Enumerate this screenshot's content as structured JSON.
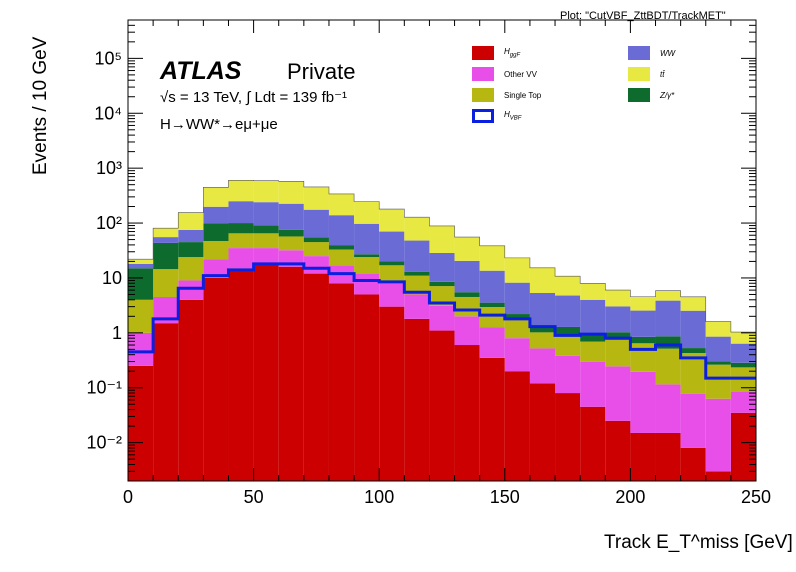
{
  "plot_tag": "Plot: \"CutVBF_ZttBDT/TrackMET\"",
  "atlas_label": "ATLAS",
  "status_label": "Private",
  "lumi_text": "√s = 13 TeV, ∫ Ldt = 139 fb⁻¹",
  "channel_text": "H→WW*→eμ+μe",
  "colors": {
    "H_ggF": "#cc0000",
    "Other VV": "#e84fe8",
    "Single Top": "#b7b712",
    "Z/γ*": "#0e6b2e",
    "WW": "#6b6bd6",
    "tt": "#e8e842",
    "H_VBF": "#0b1fe0"
  },
  "chart_data": {
    "type": "bar",
    "stacked": true,
    "xlabel": "Track E_T^miss [GeV]",
    "ylabel": "Events / 10 GeV",
    "xlim": [
      0,
      250
    ],
    "ylim": [
      0.002,
      500000
    ],
    "log_y": true,
    "x_ticks": [
      "0",
      "50",
      "100",
      "150",
      "200",
      "250"
    ],
    "y_ticks": [
      "10⁻²",
      "10⁻¹",
      "1",
      "10",
      "10²",
      "10³",
      "10⁴",
      "10⁵"
    ],
    "legend_position": "top-right",
    "bin_edges": [
      0,
      10,
      20,
      30,
      40,
      50,
      60,
      70,
      80,
      90,
      100,
      110,
      120,
      130,
      140,
      150,
      160,
      170,
      180,
      190,
      200,
      210,
      220,
      230,
      240,
      250
    ],
    "series": [
      {
        "name": "H_ggF",
        "values": [
          0.25,
          1.5,
          4,
          10,
          15,
          18,
          16,
          12,
          8,
          5,
          3,
          1.8,
          1.1,
          0.6,
          0.35,
          0.2,
          0.12,
          0.08,
          0.045,
          0.025,
          0.015,
          0.015,
          0.008,
          0.003,
          0.035
        ]
      },
      {
        "name": "Other VV",
        "values": [
          0.75,
          3,
          5,
          12,
          20,
          17,
          16,
          13,
          9,
          7,
          5,
          3.2,
          2,
          1.4,
          0.9,
          0.6,
          0.4,
          0.3,
          0.25,
          0.22,
          0.18,
          0.1,
          0.07,
          0.06,
          0.05
        ]
      },
      {
        "name": "Single Top",
        "values": [
          3,
          10,
          15,
          25,
          30,
          30,
          25,
          20,
          16,
          12,
          9,
          6,
          4,
          2.5,
          1.7,
          1,
          0.5,
          0.5,
          0.4,
          0.5,
          0.45,
          0.4,
          0.35,
          0.2,
          0.15
        ]
      },
      {
        "name": "Z/γ*",
        "values": [
          11,
          29,
          21,
          51,
          35,
          25,
          18,
          10,
          6,
          3,
          3,
          2,
          1.4,
          1,
          0.6,
          0.4,
          0.3,
          0.4,
          0.3,
          0.28,
          0.2,
          0.35,
          0.1,
          0.04,
          0.05
        ]
      },
      {
        "name": "WW",
        "values": [
          3,
          12,
          30,
          100,
          150,
          150,
          150,
          120,
          100,
          70,
          50,
          35,
          20,
          15,
          10,
          6,
          4,
          3.5,
          3,
          2,
          1.7,
          3,
          2,
          0.55,
          0.35
        ]
      },
      {
        "name": "tt",
        "values": [
          4,
          25,
          80,
          250,
          350,
          350,
          350,
          280,
          200,
          150,
          110,
          80,
          60,
          35,
          25,
          15,
          10,
          6,
          4,
          3,
          2,
          2,
          2,
          0.75,
          0.4
        ]
      },
      {
        "name": "H_VBF",
        "overlay": true,
        "values": [
          0.45,
          1.8,
          6.5,
          11,
          14,
          18,
          18,
          15,
          12,
          9,
          8.5,
          5.5,
          3.5,
          2.6,
          2.1,
          1.8,
          1.3,
          0.9,
          0.95,
          0.8,
          0.5,
          0.6,
          0.35,
          0.15,
          0.15
        ]
      }
    ],
    "legend_entries": [
      {
        "key": "H_ggF",
        "label": "H",
        "sub": "ggF",
        "col": 0,
        "row": 0
      },
      {
        "key": "Other VV",
        "label": "Other VV",
        "sub": "",
        "col": 0,
        "row": 1
      },
      {
        "key": "Single Top",
        "label": "Single Top",
        "sub": "",
        "col": 0,
        "row": 2
      },
      {
        "key": "H_VBF",
        "label": "H",
        "sub": "VBF",
        "col": 0,
        "row": 3
      },
      {
        "key": "WW",
        "label": "WW",
        "sub": "",
        "col": 1,
        "row": 0
      },
      {
        "key": "tt",
        "label": "tt̄",
        "sub": "",
        "col": 1,
        "row": 1
      },
      {
        "key": "Z/γ*",
        "label": "Z/γ*",
        "sub": "",
        "col": 1,
        "row": 2
      }
    ]
  }
}
